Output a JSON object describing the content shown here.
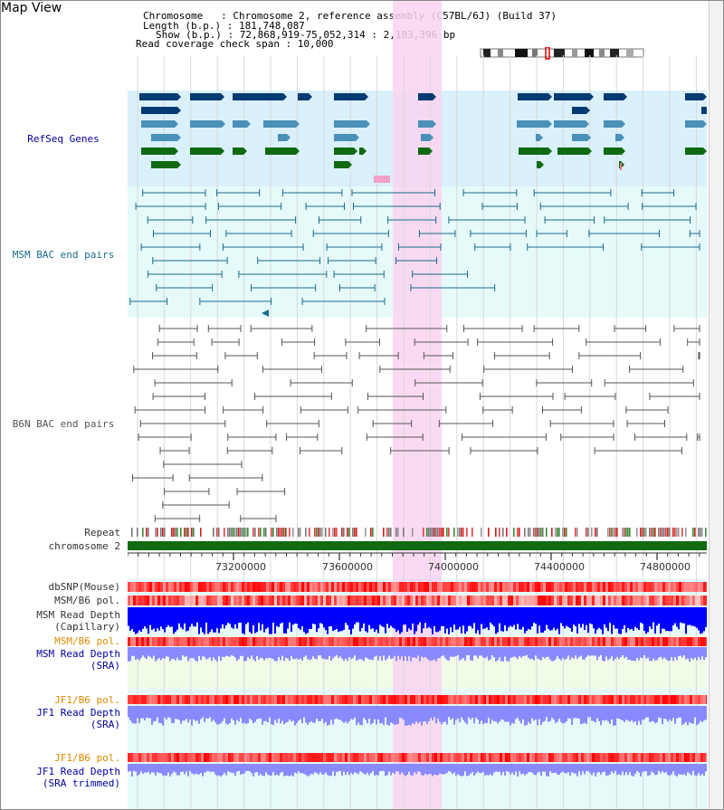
{
  "header": {
    "title": "Map View",
    "chromosome_line": "Chromosome   : Chromosome 2, reference assembly (C57BL/6J) (Build 37)",
    "length_line": "Length (b.p.) : 181,748,087",
    "show_line": "Show (b.p.) : 72,868,919-75,052,314 : 2,183,396 bp",
    "coverage_line": "Read coverage check span : 10,000"
  },
  "tracks": {
    "refseq": "RefSeq Genes",
    "msm_bac": "MSM BAC end pairs",
    "b6n_bac": "B6N BAC end pairs",
    "repeat": "Repeat",
    "chromosome": "chromosome 2",
    "dbsnp": "dbSNP(Mouse)",
    "msm_b6_pol": "MSM/B6 pol.",
    "msm_depth_cap_1": "MSM Read Depth",
    "msm_depth_cap_2": "(Capillary)",
    "msm_b6_pol_2": "MSM/B6 pol.",
    "msm_depth_sra_1": "MSM Read Depth",
    "msm_depth_sra_2": "(SRA)",
    "jf1_pol_1": "JF1/B6 pol.",
    "jf1_depth_sra_1": "JF1 Read Depth",
    "jf1_depth_sra_2": "(SRA)",
    "jf1_pol_2": "JF1/B6 pol.",
    "jf1_depth_trim_1": "JF1 Read Depth",
    "jf1_depth_trim_2": "(SRA trimmed)"
  },
  "ruler": {
    "ticks": [
      "73200000",
      "73600000",
      "74000000",
      "74400000",
      "74800000"
    ]
  },
  "colors": {
    "refseq_bg": "#daf0fa",
    "msm_bac_bg": "#e6fafa",
    "b6n_bg": "#ffffff",
    "highlight": "#f9d4f0",
    "gene_dark": "#063a72",
    "gene_mid": "#4a90b8",
    "gene_green": "#0f6a12",
    "msm_line": "#1a6b8a",
    "b6n_line": "#555555",
    "chromosome_green": "#0f6a12",
    "depth_blue_dark": "#0000ff",
    "depth_blue_light": "#8a8aff",
    "pol_red": "#ff3030"
  }
}
